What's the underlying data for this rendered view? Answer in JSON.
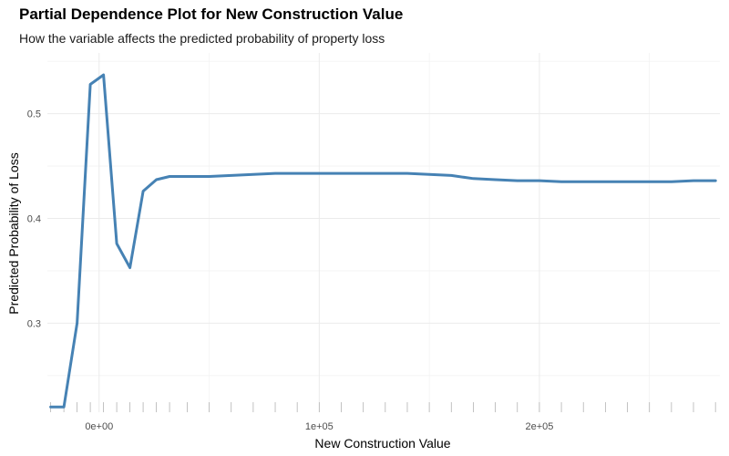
{
  "chart_data": {
    "type": "line",
    "title": "Partial Dependence Plot for New Construction Value",
    "subtitle": "How the variable affects the predicted probability of property loss",
    "xlabel": "New Construction Value",
    "ylabel": "Predicted Probability of Loss",
    "xlim": [
      -23500,
      282000
    ],
    "ylim": [
      0.215,
      0.558
    ],
    "x_ticks": [
      0,
      100000,
      200000
    ],
    "x_tick_labels": [
      "0e+00",
      "1e+05",
      "2e+05"
    ],
    "y_ticks": [
      0.3,
      0.4,
      0.5
    ],
    "y_tick_labels": [
      "0.3",
      "0.4",
      "0.5"
    ],
    "grid": true,
    "legend": "none",
    "line_color": "#4682B4",
    "series": [
      {
        "x": [
          -22000,
          -16000,
          -10000,
          -4000,
          2000,
          8000,
          14000,
          20000,
          26000,
          32000,
          40000,
          50000,
          60000,
          70000,
          80000,
          90000,
          100000,
          110000,
          120000,
          130000,
          140000,
          150000,
          160000,
          170000,
          180000,
          190000,
          200000,
          210000,
          220000,
          230000,
          240000,
          250000,
          260000,
          270000,
          280000
        ],
        "y": [
          0.22,
          0.22,
          0.3,
          0.528,
          0.537,
          0.376,
          0.353,
          0.426,
          0.437,
          0.44,
          0.44,
          0.44,
          0.441,
          0.442,
          0.443,
          0.443,
          0.443,
          0.443,
          0.443,
          0.443,
          0.443,
          0.442,
          0.441,
          0.438,
          0.437,
          0.436,
          0.436,
          0.435,
          0.435,
          0.435,
          0.435,
          0.435,
          0.435,
          0.436,
          0.436
        ]
      }
    ],
    "rug_x": [
      -22000,
      -16000,
      -10000,
      -4000,
      2000,
      8000,
      14000,
      20000,
      26000,
      32000,
      40000,
      50000,
      60000,
      70000,
      80000,
      90000,
      100000,
      110000,
      120000,
      130000,
      140000,
      150000,
      160000,
      170000,
      180000,
      190000,
      200000,
      210000,
      220000,
      230000,
      240000,
      250000,
      260000,
      270000,
      280000
    ]
  }
}
